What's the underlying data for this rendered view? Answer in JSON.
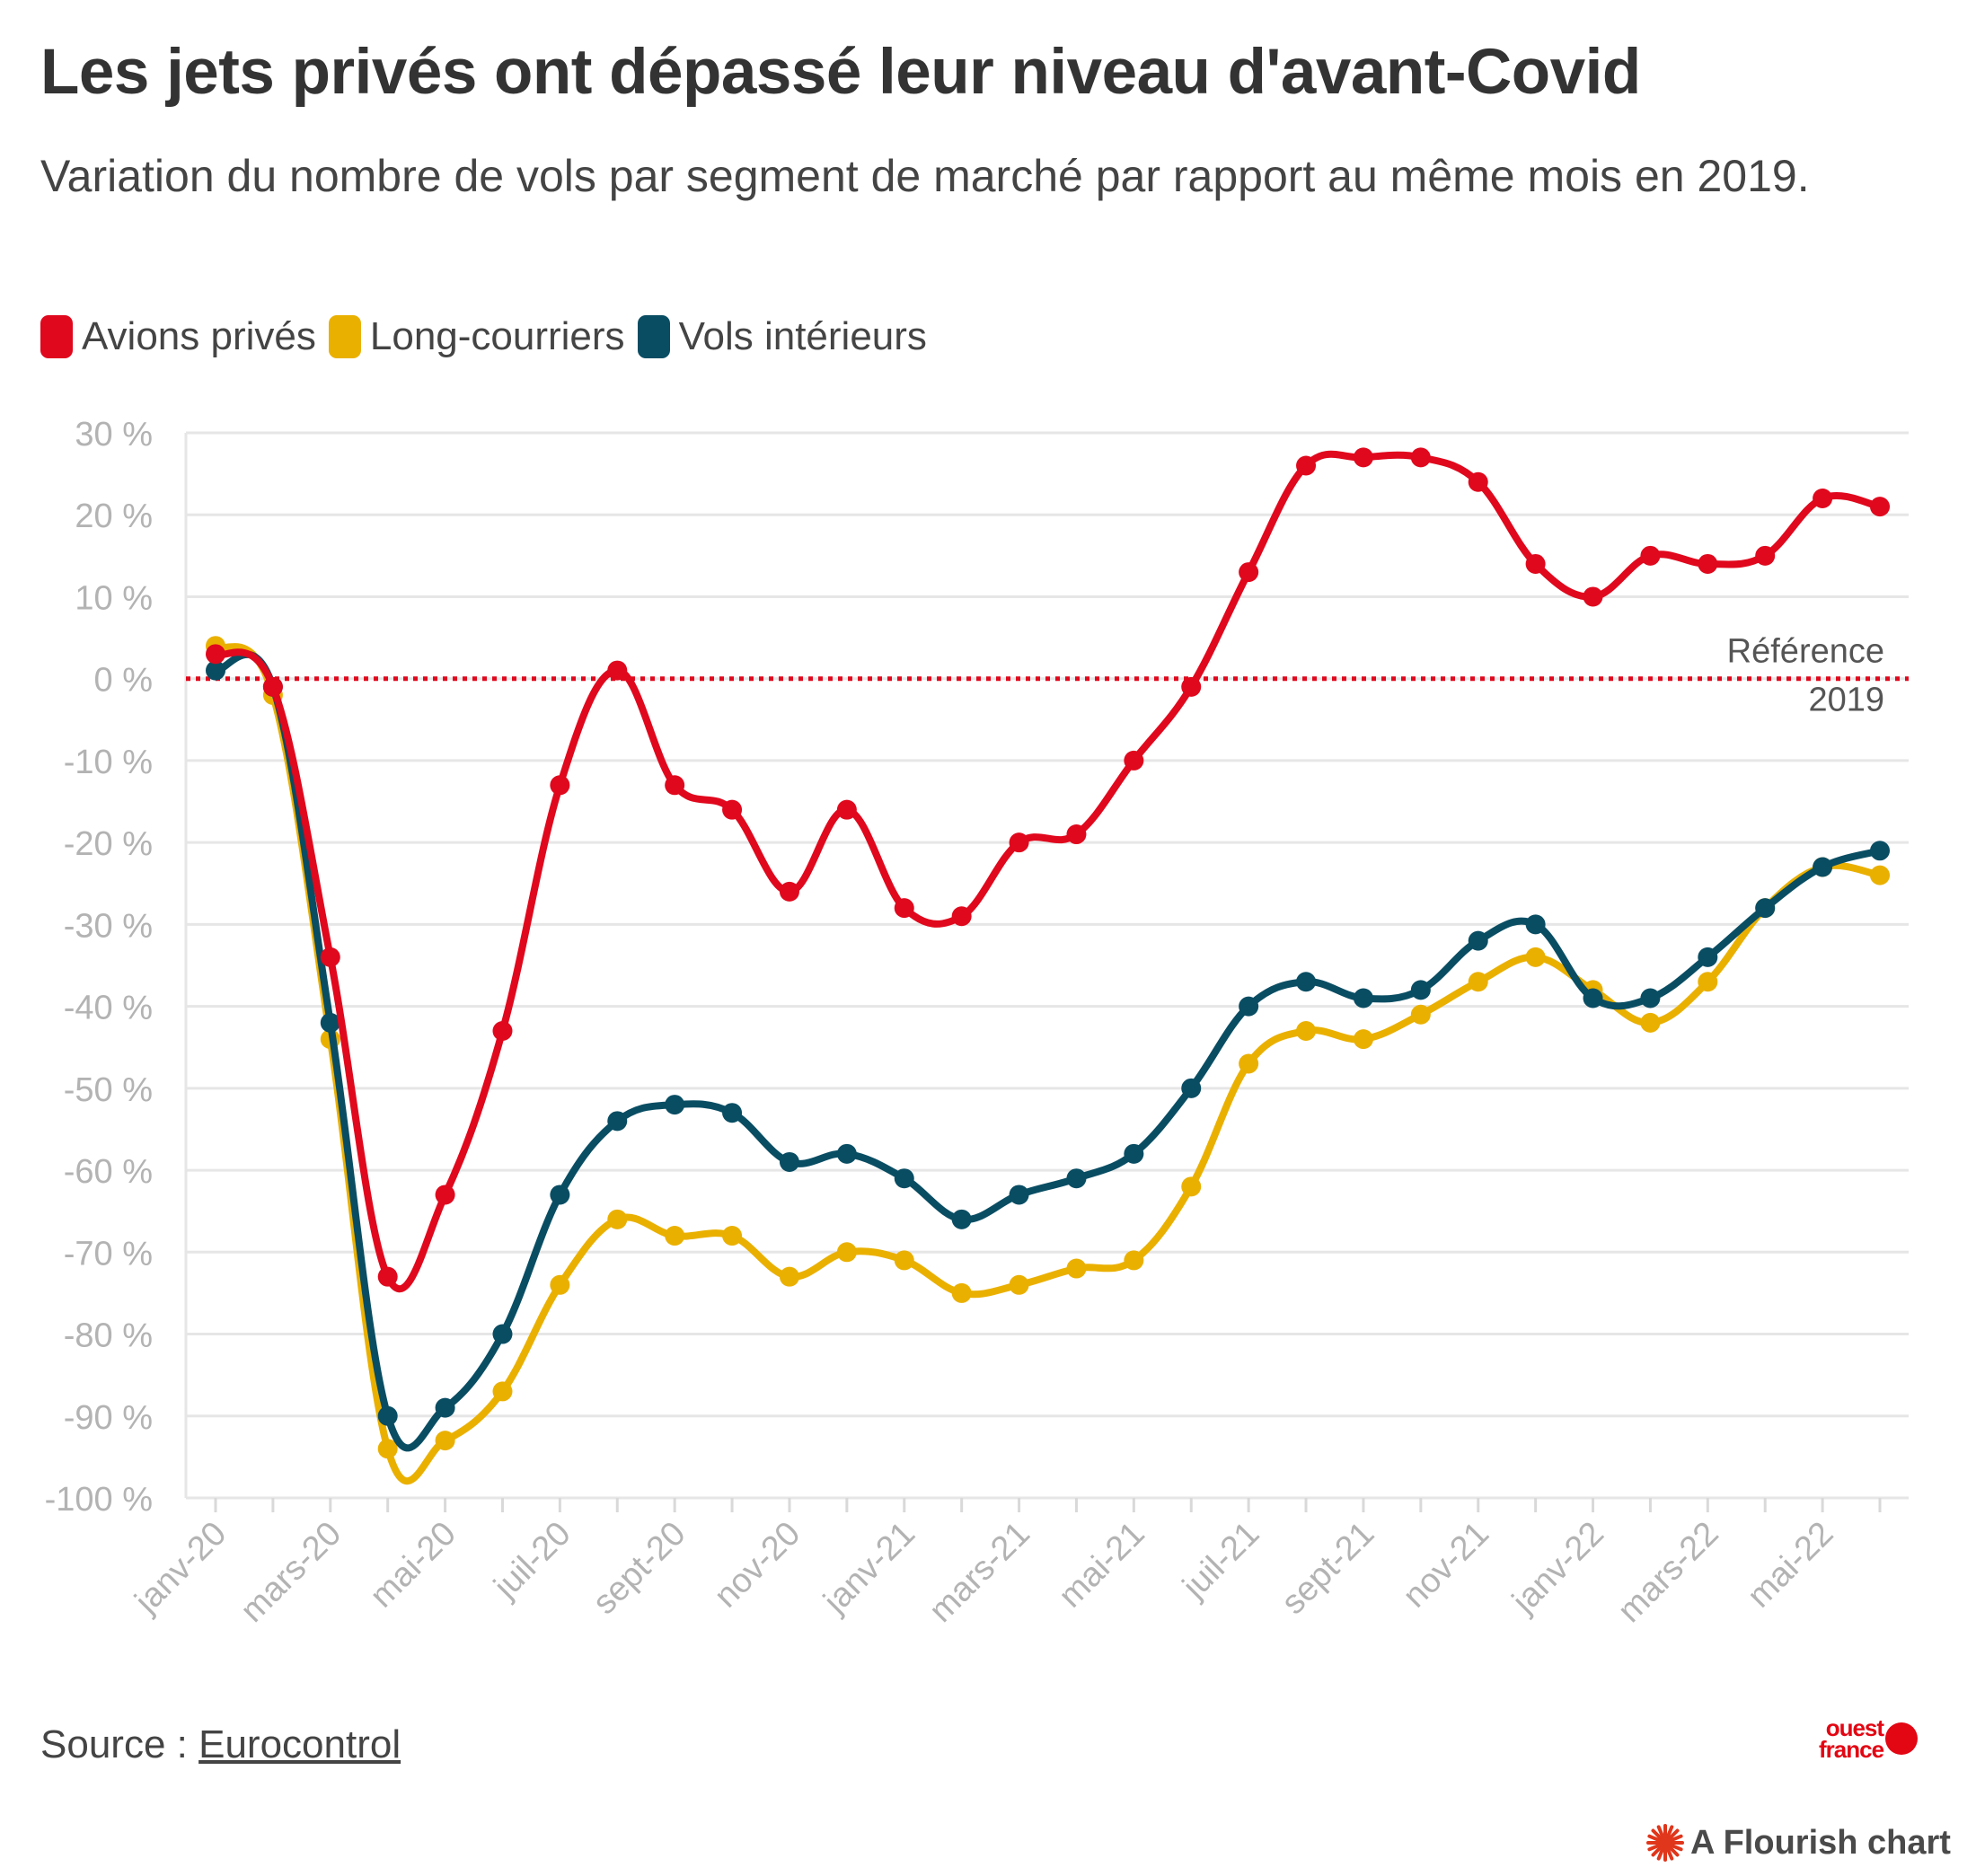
{
  "header": {
    "title": "Les jets privés ont dépassé leur niveau d'avant-Covid",
    "subtitle": "Variation du nombre de vols par segment de marché par rapport au même mois en 2019."
  },
  "footer": {
    "source_label": "Source : ",
    "source_link": "Eurocontrol",
    "logo_line1": "ouest",
    "logo_line2": "france",
    "flourish": "A Flourish chart"
  },
  "chart_data": {
    "type": "line",
    "title": "Les jets privés ont dépassé leur niveau d'avant-Covid",
    "subtitle": "Variation du nombre de vols par segment de marché par rapport au même mois en 2019.",
    "x": [
      "janv-20",
      "févr-20",
      "mars-20",
      "avr-20",
      "mai-20",
      "juin-20",
      "juil-20",
      "août-20",
      "sept-20",
      "oct-20",
      "nov-20",
      "déc-20",
      "janv-21",
      "févr-21",
      "mars-21",
      "avr-21",
      "mai-21",
      "juin-21",
      "juil-21",
      "août-21",
      "sept-21",
      "oct-21",
      "nov-21",
      "déc-21",
      "janv-22",
      "févr-22",
      "mars-22",
      "avr-22",
      "mai-22",
      "juin-22"
    ],
    "x_tick_labels": [
      "janv-20",
      "mars-20",
      "mai-20",
      "juil-20",
      "sept-20",
      "nov-20",
      "janv-21",
      "mars-21",
      "mai-21",
      "juil-21",
      "sept-21",
      "nov-21",
      "janv-22",
      "mars-22",
      "mai-22"
    ],
    "y_ticks": [
      30,
      20,
      10,
      0,
      -10,
      -20,
      -30,
      -40,
      -50,
      -60,
      -70,
      -80,
      -90,
      -100
    ],
    "y_tick_labels": [
      "30 %",
      "20 %",
      "10 %",
      "0 %",
      "-10 %",
      "-20 %",
      "-30 %",
      "-40 %",
      "-50 %",
      "-60 %",
      "-70 %",
      "-80 %",
      "-90 %",
      "-100 %"
    ],
    "ylim": [
      -100,
      30
    ],
    "xlabel": "",
    "ylabel": "",
    "legend_position": "top-left",
    "series": [
      {
        "name": "Avions privés",
        "color": "#e0081d",
        "values": [
          3,
          -1,
          -34,
          -73,
          -63,
          -43,
          -13,
          1,
          -13,
          -16,
          -26,
          -16,
          -28,
          -29,
          -20,
          -19,
          -10,
          -1,
          13,
          26,
          27,
          27,
          24,
          14,
          10,
          15,
          14,
          15,
          22,
          21
        ]
      },
      {
        "name": "Long-courriers",
        "color": "#eab000",
        "values": [
          4,
          -2,
          -44,
          -94,
          -93,
          -87,
          -74,
          -66,
          -68,
          -68,
          -73,
          -70,
          -71,
          -75,
          -74,
          -72,
          -71,
          -62,
          -47,
          -43,
          -44,
          -41,
          -37,
          -34,
          -38,
          -42,
          -37,
          -28,
          -23,
          -24
        ]
      },
      {
        "name": "Vols intérieurs",
        "color": "#094d63",
        "values": [
          1,
          -1,
          -42,
          -90,
          -89,
          -80,
          -63,
          -54,
          -52,
          -53,
          -59,
          -58,
          -61,
          -66,
          -63,
          -61,
          -58,
          -50,
          -40,
          -37,
          -39,
          -38,
          -32,
          -30,
          -39,
          -39,
          -34,
          -28,
          -23,
          -21
        ]
      }
    ],
    "reference_line": {
      "value": 0,
      "label_line1": "Référence",
      "label_line2": "2019",
      "color": "#e0081d",
      "style": "dotted"
    }
  }
}
